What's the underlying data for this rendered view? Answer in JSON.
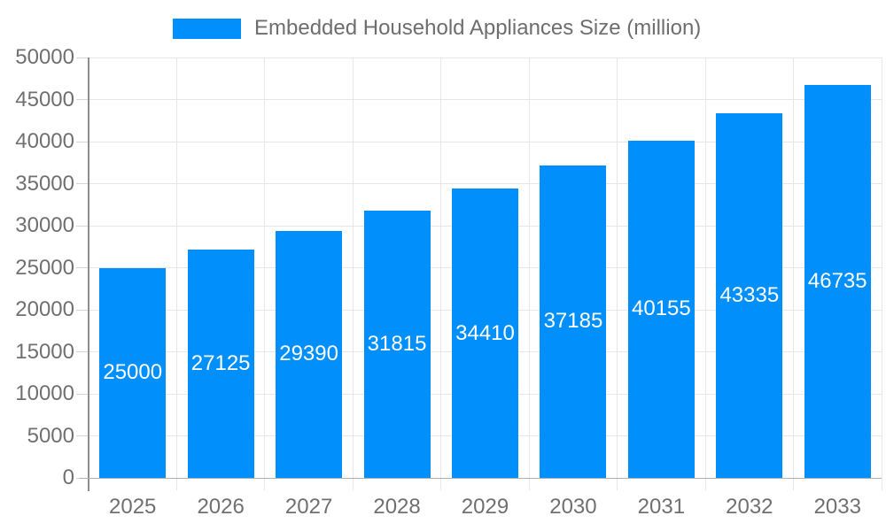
{
  "legend": {
    "label": "Embedded Household Appliances Size (million)"
  },
  "chart_data": {
    "type": "bar",
    "title": "Embedded Household Appliances Size (million)",
    "categories": [
      "2025",
      "2026",
      "2027",
      "2028",
      "2029",
      "2030",
      "2031",
      "2032",
      "2033"
    ],
    "values": [
      25000,
      27125,
      29390,
      31815,
      34410,
      37185,
      40155,
      43335,
      46735
    ],
    "xlabel": "",
    "ylabel": "",
    "ylim": [
      0,
      50000
    ],
    "ytick_step": 5000,
    "grid": "both",
    "legend_position": "top",
    "value_labels": "inside-center-white",
    "colors": {
      "bar": "#008FFB",
      "value_label": "#ffffff",
      "axis_label": "#707070",
      "legend_label": "#6e6e6e",
      "gridline": "#e7e7e7",
      "tick": "#d6d6d6",
      "y_axis_line": "#8e8e8e",
      "x_axis_line": "#b0b0b0"
    }
  }
}
